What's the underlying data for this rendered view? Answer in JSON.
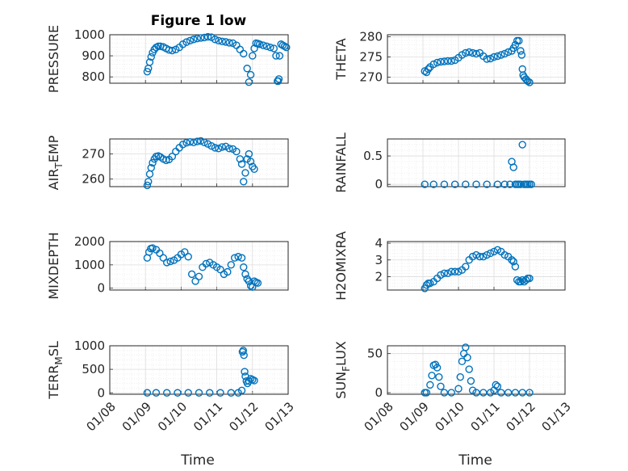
{
  "figure": {
    "title": "Figure 1 low",
    "xlabel": "Time",
    "x_ticks": [
      "01/08",
      "01/09",
      "01/10",
      "01/11",
      "01/12",
      "01/13"
    ],
    "marker_color": "#0072bd"
  },
  "chart_data": [
    {
      "type": "scatter",
      "ylabel": "PRESSURE",
      "ylim": [
        770,
        1000
      ],
      "yticks": [
        800,
        900,
        1000
      ],
      "grid": true,
      "x": [
        1.05,
        1.08,
        1.12,
        1.16,
        1.2,
        1.25,
        1.3,
        1.36,
        1.42,
        1.5,
        1.58,
        1.66,
        1.75,
        1.85,
        1.95,
        2.05,
        2.15,
        2.25,
        2.35,
        2.45,
        2.55,
        2.65,
        2.75,
        2.85,
        2.95,
        3.05,
        3.15,
        3.25,
        3.35,
        3.45,
        3.55,
        3.65,
        3.75,
        3.85,
        3.9,
        3.95,
        4.0,
        4.05,
        4.1,
        4.15,
        4.2,
        4.3,
        4.4,
        4.5,
        4.6,
        4.66,
        4.7,
        4.72,
        4.74,
        4.76,
        4.8,
        4.85,
        4.9,
        4.95
      ],
      "y": [
        825,
        840,
        870,
        895,
        915,
        930,
        940,
        945,
        945,
        942,
        935,
        928,
        925,
        930,
        940,
        955,
        965,
        972,
        978,
        982,
        985,
        987,
        990,
        988,
        978,
        972,
        968,
        966,
        962,
        960,
        950,
        930,
        910,
        840,
        775,
        810,
        900,
        935,
        960,
        958,
        955,
        950,
        945,
        940,
        935,
        900,
        780,
        780,
        790,
        900,
        955,
        950,
        945,
        940
      ]
    },
    {
      "type": "scatter",
      "ylabel": "THETA",
      "ylim": [
        268.5,
        280.5
      ],
      "yticks": [
        270,
        275,
        280
      ],
      "grid": true,
      "x": [
        1.05,
        1.1,
        1.15,
        1.2,
        1.3,
        1.4,
        1.5,
        1.6,
        1.7,
        1.8,
        1.9,
        2.0,
        2.1,
        2.2,
        2.3,
        2.4,
        2.5,
        2.6,
        2.7,
        2.8,
        2.9,
        3.0,
        3.1,
        3.2,
        3.3,
        3.4,
        3.5,
        3.55,
        3.6,
        3.65,
        3.7,
        3.75,
        3.78,
        3.8,
        3.82,
        3.85,
        3.9,
        3.95,
        4.0
      ],
      "y": [
        271.5,
        271.2,
        272.0,
        272.5,
        273.2,
        273.6,
        273.8,
        273.9,
        274.0,
        274.0,
        274.2,
        274.8,
        275.5,
        276.0,
        276.2,
        276.0,
        275.8,
        276.0,
        275.2,
        274.5,
        274.6,
        275.0,
        275.2,
        275.5,
        275.8,
        276.2,
        276.5,
        277.2,
        278.0,
        279.0,
        279.0,
        276.5,
        275.5,
        272.0,
        270.5,
        270.0,
        269.5,
        269.0,
        268.7
      ]
    },
    {
      "type": "scatter",
      "ylabel": "AIR_TEMP",
      "ylim": [
        257,
        276
      ],
      "yticks": [
        260,
        270
      ],
      "grid": true,
      "x": [
        1.05,
        1.08,
        1.12,
        1.16,
        1.2,
        1.25,
        1.3,
        1.36,
        1.42,
        1.5,
        1.58,
        1.66,
        1.75,
        1.85,
        1.95,
        2.05,
        2.15,
        2.25,
        2.35,
        2.45,
        2.55,
        2.65,
        2.75,
        2.85,
        2.95,
        3.05,
        3.15,
        3.25,
        3.35,
        3.45,
        3.55,
        3.65,
        3.7,
        3.75,
        3.8,
        3.85,
        3.9,
        3.95,
        4.0,
        4.05
      ],
      "y": [
        257.5,
        259,
        262,
        264.5,
        266.5,
        268,
        269,
        269.2,
        268.8,
        268,
        267.5,
        267.8,
        269,
        271,
        272.5,
        273.8,
        274.5,
        274.8,
        274.6,
        275,
        275.2,
        274.6,
        274,
        273.2,
        272.5,
        272.2,
        272.8,
        273,
        272.2,
        272,
        271,
        268,
        266,
        259,
        262.5,
        268,
        270,
        267,
        265,
        264
      ]
    },
    {
      "type": "scatter",
      "ylabel": "RAINFALL",
      "ylim": [
        -0.04,
        0.8
      ],
      "yticks": [
        0,
        0.5
      ],
      "grid": true,
      "x": [
        1.05,
        1.3,
        1.6,
        1.9,
        2.2,
        2.5,
        2.8,
        3.1,
        3.3,
        3.45,
        3.5,
        3.55,
        3.6,
        3.65,
        3.7,
        3.75,
        3.8,
        3.85,
        3.9,
        3.95,
        4.0,
        4.05
      ],
      "y": [
        0,
        0,
        0,
        0,
        0,
        0,
        0,
        0,
        0,
        0,
        0.4,
        0.3,
        0,
        0,
        0,
        0,
        0.7,
        0,
        0,
        0,
        0,
        0
      ]
    },
    {
      "type": "scatter",
      "ylabel": "MIXDEPTH",
      "ylim": [
        -80,
        2000
      ],
      "yticks": [
        0,
        1000,
        2000
      ],
      "grid": true,
      "x": [
        1.05,
        1.1,
        1.15,
        1.2,
        1.3,
        1.4,
        1.5,
        1.6,
        1.7,
        1.8,
        1.9,
        2.0,
        2.1,
        2.2,
        2.3,
        2.4,
        2.5,
        2.6,
        2.7,
        2.8,
        2.9,
        3.0,
        3.1,
        3.2,
        3.3,
        3.4,
        3.5,
        3.6,
        3.7,
        3.75,
        3.8,
        3.85,
        3.9,
        3.95,
        4.0,
        4.05,
        4.1,
        4.15
      ],
      "y": [
        1300,
        1550,
        1700,
        1720,
        1650,
        1500,
        1300,
        1100,
        1150,
        1200,
        1300,
        1450,
        1550,
        1350,
        600,
        300,
        500,
        900,
        1050,
        1100,
        1000,
        900,
        800,
        600,
        700,
        1000,
        1300,
        1350,
        1300,
        900,
        600,
        400,
        300,
        100,
        50,
        300,
        250,
        220
      ]
    },
    {
      "type": "scatter",
      "ylabel": "H2OMIXRA",
      "ylim": [
        1.2,
        4.1
      ],
      "yticks": [
        2,
        3,
        4
      ],
      "grid": true,
      "x": [
        1.05,
        1.1,
        1.15,
        1.2,
        1.3,
        1.4,
        1.5,
        1.6,
        1.7,
        1.8,
        1.9,
        2.0,
        2.1,
        2.2,
        2.3,
        2.4,
        2.5,
        2.6,
        2.7,
        2.8,
        2.9,
        3.0,
        3.1,
        3.2,
        3.3,
        3.4,
        3.5,
        3.55,
        3.6,
        3.65,
        3.7,
        3.75,
        3.8,
        3.85,
        3.9,
        3.95,
        4.0
      ],
      "y": [
        1.3,
        1.5,
        1.6,
        1.6,
        1.7,
        1.9,
        2.1,
        2.2,
        2.2,
        2.3,
        2.3,
        2.3,
        2.4,
        2.6,
        3.0,
        3.2,
        3.3,
        3.2,
        3.2,
        3.3,
        3.4,
        3.5,
        3.6,
        3.5,
        3.3,
        3.2,
        3.0,
        2.9,
        2.6,
        1.8,
        1.7,
        1.7,
        1.8,
        1.7,
        1.8,
        1.9,
        1.9
      ]
    },
    {
      "type": "scatter",
      "ylabel": "TERR_MSL",
      "ylim": [
        -30,
        1000
      ],
      "yticks": [
        0,
        500,
        1000
      ],
      "grid": true,
      "x": [
        1.05,
        1.3,
        1.6,
        1.9,
        2.2,
        2.5,
        2.8,
        3.1,
        3.4,
        3.6,
        3.7,
        3.72,
        3.74,
        3.76,
        3.78,
        3.8,
        3.83,
        3.86,
        3.9,
        3.95,
        4.0,
        4.05
      ],
      "y": [
        0,
        0,
        0,
        0,
        0,
        0,
        0,
        0,
        0,
        0,
        50,
        870,
        900,
        800,
        450,
        350,
        250,
        200,
        250,
        300,
        280,
        260
      ]
    },
    {
      "type": "scatter",
      "ylabel": "SUN_FLUX",
      "ylim": [
        -2,
        60
      ],
      "yticks": [
        0,
        50
      ],
      "grid": true,
      "x": [
        1.05,
        1.1,
        1.2,
        1.25,
        1.3,
        1.35,
        1.4,
        1.45,
        1.5,
        1.6,
        1.8,
        2.0,
        2.05,
        2.1,
        2.15,
        2.2,
        2.25,
        2.3,
        2.35,
        2.4,
        2.5,
        2.7,
        2.9,
        3.0,
        3.05,
        3.1,
        3.2,
        3.4,
        3.6,
        3.8,
        4.0
      ],
      "y": [
        0,
        0,
        10,
        22,
        35,
        36,
        32,
        20,
        8,
        0,
        0,
        5,
        20,
        40,
        50,
        58,
        45,
        30,
        15,
        3,
        0,
        0,
        0,
        3,
        10,
        8,
        0,
        0,
        0,
        0,
        0
      ]
    }
  ]
}
